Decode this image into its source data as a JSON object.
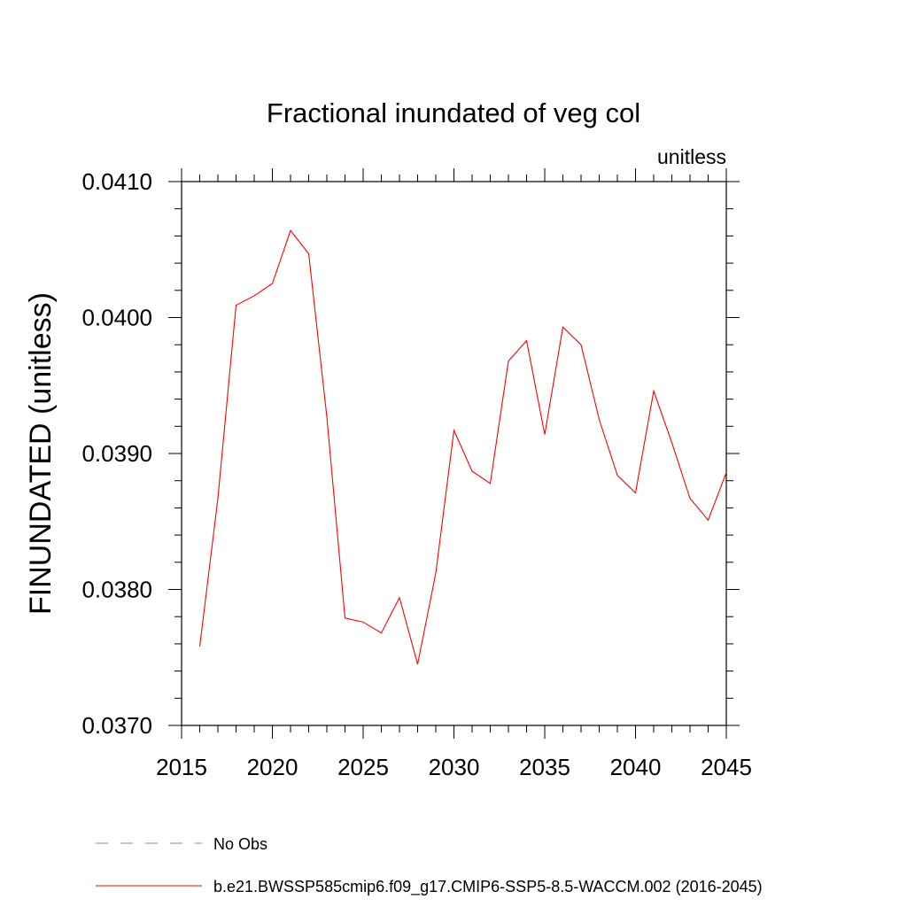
{
  "chart_data": {
    "type": "line",
    "title": "Fractional inundated of veg col",
    "units_label": "unitless",
    "ylabel": "FINUNDATED  (unitless)",
    "xlabel": "",
    "xlim": [
      2015,
      2045
    ],
    "ylim": [
      0.037,
      0.041
    ],
    "x_ticks": [
      "2015",
      "2020",
      "2025",
      "2030",
      "2035",
      "2040",
      "2045"
    ],
    "y_ticks": [
      "0.0370",
      "0.0380",
      "0.0390",
      "0.0400",
      "0.0410"
    ],
    "grid": false,
    "legend_placement": "bottom",
    "series": [
      {
        "name": "No Obs",
        "color": "#8a7fc0",
        "dash": "dashed",
        "x": [],
        "y": []
      },
      {
        "name": "b.e21.BWSSP585cmip6.f09_g17.CMIP6-SSP5-8.5-WACCM.002 (2016-2045)",
        "color": "#ff0000",
        "dash": "solid",
        "x": [
          2016,
          2017,
          2018,
          2019,
          2020,
          2021,
          2022,
          2023,
          2024,
          2025,
          2026,
          2027,
          2028,
          2029,
          2030,
          2031,
          2032,
          2033,
          2034,
          2035,
          2036,
          2037,
          2038,
          2039,
          2040,
          2041,
          2042,
          2043,
          2044,
          2045
        ],
        "y": [
          0.03758,
          0.03867,
          0.04009,
          0.04016,
          0.04025,
          0.04064,
          0.04047,
          0.03927,
          0.03779,
          0.03776,
          0.03768,
          0.03794,
          0.03745,
          0.03812,
          0.03917,
          0.03887,
          0.03878,
          0.03968,
          0.03983,
          0.03914,
          0.03993,
          0.0398,
          0.03925,
          0.03884,
          0.03871,
          0.03946,
          0.03908,
          0.03867,
          0.03851,
          0.03886
        ]
      }
    ]
  }
}
